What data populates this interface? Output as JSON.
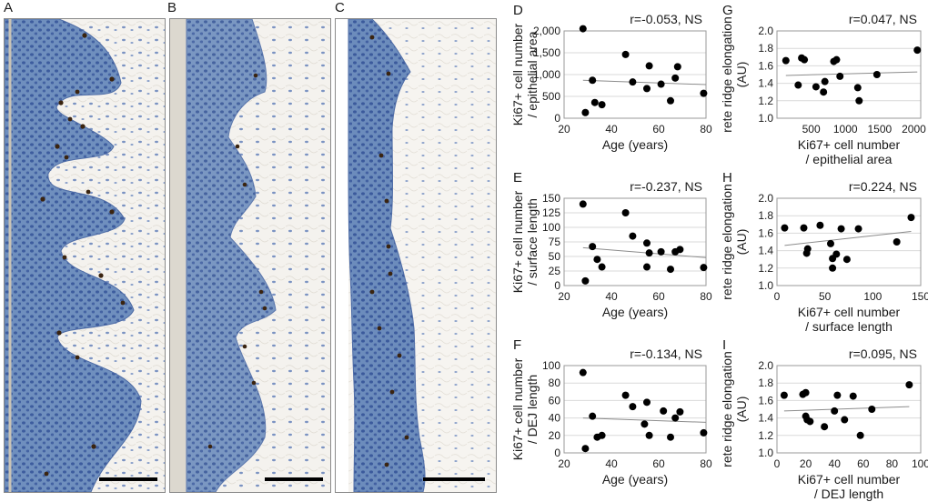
{
  "panels": {
    "A": "A",
    "B": "B",
    "C": "C",
    "D": "D",
    "E": "E",
    "F": "F",
    "G": "G",
    "H": "H",
    "I": "I"
  },
  "colors": {
    "epidermis": "#6f8fbe",
    "nuclei": "#2f4f93",
    "ki67": "#3a2410",
    "dermis": "#f4f2ee",
    "dot": "#000000",
    "trend": "#8c8c8c",
    "grid": "#d9d9d9"
  },
  "chart_data": [
    {
      "id": "D",
      "type": "scatter",
      "stat": "r=-0.053, NS",
      "ylabel_lines": [
        "Ki67+ cell number",
        "/ epithelial area"
      ],
      "xlabel_lines": [
        "Age (years)"
      ],
      "xlim": [
        20,
        80
      ],
      "xticks": [
        20,
        40,
        60,
        80
      ],
      "xtick_labels": [
        "20",
        "40",
        "60",
        "80"
      ],
      "ylim": [
        0,
        2000
      ],
      "yticks": [
        0,
        500,
        1000,
        1500,
        2000
      ],
      "ytick_labels": [
        "0",
        "500",
        "1,000",
        "1,500",
        "2,000"
      ],
      "points": [
        [
          28,
          2050
        ],
        [
          29,
          130
        ],
        [
          32,
          870
        ],
        [
          33,
          360
        ],
        [
          36,
          310
        ],
        [
          46,
          1460
        ],
        [
          49,
          830
        ],
        [
          55,
          680
        ],
        [
          56,
          1200
        ],
        [
          61,
          780
        ],
        [
          65,
          400
        ],
        [
          67,
          920
        ],
        [
          68,
          1180
        ],
        [
          79,
          570
        ]
      ],
      "trend": [
        [
          28,
          870
        ],
        [
          80,
          770
        ]
      ]
    },
    {
      "id": "E",
      "type": "scatter",
      "stat": "r=-0.237, NS",
      "ylabel_lines": [
        "Ki67+ cell number",
        "/ surface length"
      ],
      "xlabel_lines": [
        "Age (years)"
      ],
      "xlim": [
        20,
        80
      ],
      "xticks": [
        20,
        40,
        60,
        80
      ],
      "xtick_labels": [
        "20",
        "40",
        "60",
        "80"
      ],
      "ylim": [
        0,
        150
      ],
      "yticks": [
        0,
        25,
        50,
        75,
        100,
        125,
        150
      ],
      "ytick_labels": [
        "0",
        "25",
        "50",
        "75",
        "100",
        "125",
        "150"
      ],
      "points": [
        [
          28,
          140
        ],
        [
          29,
          8
        ],
        [
          32,
          67
        ],
        [
          34,
          45
        ],
        [
          36,
          32
        ],
        [
          46,
          125
        ],
        [
          49,
          85
        ],
        [
          55,
          73
        ],
        [
          55,
          32
        ],
        [
          56,
          56
        ],
        [
          61,
          58
        ],
        [
          65,
          28
        ],
        [
          67,
          58
        ],
        [
          69,
          62
        ],
        [
          79,
          31
        ]
      ],
      "trend": [
        [
          28,
          65
        ],
        [
          80,
          48
        ]
      ]
    },
    {
      "id": "F",
      "type": "scatter",
      "stat": "r=-0.134, NS",
      "ylabel_lines": [
        "Ki67+ cell number",
        "/ DEJ length"
      ],
      "xlabel_lines": [
        "Age (years)"
      ],
      "xlim": [
        20,
        80
      ],
      "xticks": [
        20,
        40,
        60,
        80
      ],
      "xtick_labels": [
        "20",
        "40",
        "60",
        "80"
      ],
      "ylim": [
        0,
        100
      ],
      "yticks": [
        0,
        20,
        40,
        60,
        80,
        100
      ],
      "ytick_labels": [
        "0",
        "20",
        "40",
        "60",
        "80",
        "100"
      ],
      "points": [
        [
          28,
          92
        ],
        [
          29,
          5
        ],
        [
          32,
          42
        ],
        [
          34,
          18
        ],
        [
          36,
          20
        ],
        [
          46,
          66
        ],
        [
          49,
          53
        ],
        [
          54,
          33
        ],
        [
          55,
          58
        ],
        [
          56,
          20
        ],
        [
          62,
          48
        ],
        [
          65,
          18
        ],
        [
          67,
          40
        ],
        [
          69,
          47
        ],
        [
          79,
          23
        ]
      ],
      "trend": [
        [
          28,
          40
        ],
        [
          80,
          35
        ]
      ]
    },
    {
      "id": "G",
      "type": "scatter",
      "stat": "r=0.047, NS",
      "ylabel_lines": [
        "rete ridge elongation",
        "(AU)"
      ],
      "xlabel_lines": [
        "Ki67+ cell number",
        "/ epithelial area"
      ],
      "xlim": [
        0,
        2100
      ],
      "xticks": [
        500,
        1000,
        1500,
        2000
      ],
      "xtick_labels": [
        "500",
        "1000",
        "1500",
        "2000"
      ],
      "ylim": [
        1.0,
        2.0
      ],
      "yticks": [
        1.0,
        1.2,
        1.4,
        1.6,
        1.8,
        2.0
      ],
      "ytick_labels": [
        "1.0",
        "1.2",
        "1.4",
        "1.6",
        "1.8",
        "2.0"
      ],
      "points": [
        [
          130,
          1.66
        ],
        [
          310,
          1.38
        ],
        [
          360,
          1.69
        ],
        [
          400,
          1.67
        ],
        [
          570,
          1.36
        ],
        [
          680,
          1.3
        ],
        [
          700,
          1.42
        ],
        [
          830,
          1.65
        ],
        [
          870,
          1.67
        ],
        [
          920,
          1.48
        ],
        [
          1180,
          1.35
        ],
        [
          1200,
          1.2
        ],
        [
          1460,
          1.5
        ],
        [
          2050,
          1.78
        ]
      ],
      "trend": [
        [
          130,
          1.49
        ],
        [
          2050,
          1.53
        ]
      ]
    },
    {
      "id": "H",
      "type": "scatter",
      "stat": "r=0.224, NS",
      "ylabel_lines": [
        "rete ridge elongation",
        "(AU)"
      ],
      "xlabel_lines": [
        "Ki67+ cell number",
        "/ surface length"
      ],
      "xlim": [
        0,
        150
      ],
      "xticks": [
        0,
        50,
        100,
        150
      ],
      "xtick_labels": [
        "0",
        "50",
        "100",
        "150"
      ],
      "ylim": [
        1.0,
        2.0
      ],
      "yticks": [
        1.0,
        1.2,
        1.4,
        1.6,
        1.8,
        2.0
      ],
      "ytick_labels": [
        "1.0",
        "1.2",
        "1.4",
        "1.6",
        "1.8",
        "2.0"
      ],
      "points": [
        [
          8,
          1.66
        ],
        [
          28,
          1.66
        ],
        [
          31,
          1.37
        ],
        [
          32,
          1.42
        ],
        [
          45,
          1.69
        ],
        [
          56,
          1.48
        ],
        [
          58,
          1.2
        ],
        [
          58,
          1.31
        ],
        [
          62,
          1.36
        ],
        [
          67,
          1.65
        ],
        [
          73,
          1.3
        ],
        [
          85,
          1.65
        ],
        [
          125,
          1.5
        ],
        [
          140,
          1.78
        ]
      ],
      "trend": [
        [
          8,
          1.46
        ],
        [
          140,
          1.62
        ]
      ]
    },
    {
      "id": "I",
      "type": "scatter",
      "stat": "r=0.095, NS",
      "ylabel_lines": [
        "rete ridge elongation",
        "(AU)"
      ],
      "xlabel_lines": [
        "Ki67+ cell number",
        "/ DEJ length"
      ],
      "xlim": [
        0,
        100
      ],
      "xticks": [
        0,
        20,
        40,
        60,
        80,
        100
      ],
      "xtick_labels": [
        "0",
        "20",
        "40",
        "60",
        "80",
        "100"
      ],
      "ylim": [
        1.0,
        2.0
      ],
      "yticks": [
        1.0,
        1.2,
        1.4,
        1.6,
        1.8,
        2.0
      ],
      "ytick_labels": [
        "1.0",
        "1.2",
        "1.4",
        "1.6",
        "1.8",
        "2.0"
      ],
      "points": [
        [
          5,
          1.66
        ],
        [
          18,
          1.67
        ],
        [
          20,
          1.69
        ],
        [
          20,
          1.42
        ],
        [
          21,
          1.38
        ],
        [
          23,
          1.36
        ],
        [
          33,
          1.3
        ],
        [
          40,
          1.48
        ],
        [
          42,
          1.66
        ],
        [
          47,
          1.38
        ],
        [
          53,
          1.65
        ],
        [
          58,
          1.2
        ],
        [
          66,
          1.5
        ],
        [
          92,
          1.78
        ]
      ],
      "trend": [
        [
          5,
          1.48
        ],
        [
          92,
          1.53
        ]
      ]
    }
  ]
}
